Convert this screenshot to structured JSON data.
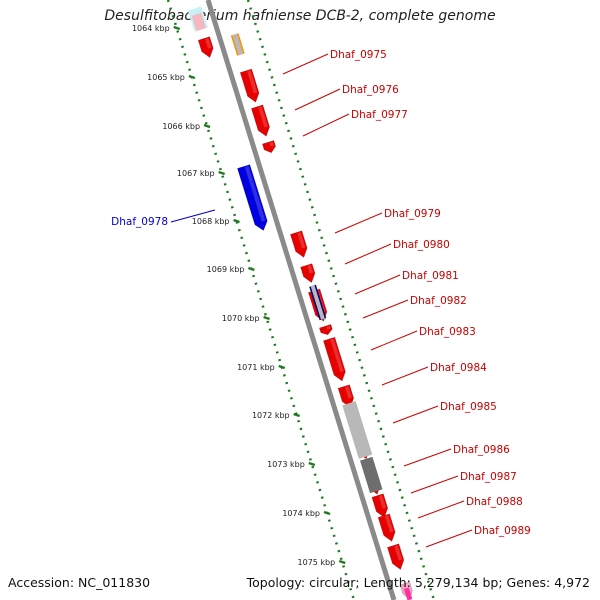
{
  "title": "Desulfitobacterium hafniense DCB-2, complete genome",
  "footer": {
    "accession": "Accession: NC_011830",
    "stats": "Topology: circular; Length: 5,279,134 bp; Genes: 4,972"
  },
  "colors": {
    "backbone": "#8a8a8a",
    "scale_dots": "#1f7a1f",
    "forward_gene": "#e60000",
    "reverse_gene": "#0000e0",
    "forward_label": "#cc0000",
    "reverse_label": "#0000cc",
    "gray_feature": "#b8b8b8",
    "dark_gray_feature": "#6e6e6e",
    "dark_navy_feature": "#000080",
    "orange_feature": "#ff9000"
  },
  "scale": {
    "unit": "kbp",
    "ticks": [
      "1064 kbp",
      "1065 kbp",
      "1066 kbp",
      "1067 kbp",
      "1068 kbp",
      "1069 kbp",
      "1070 kbp",
      "1071 kbp",
      "1072 kbp",
      "1073 kbp",
      "1074 kbp",
      "1075 kbp"
    ]
  },
  "genes": [
    {
      "name": "Dhaf_0975",
      "strand": "forward",
      "icon": "gene-arrow"
    },
    {
      "name": "Dhaf_0976",
      "strand": "forward",
      "icon": "gene-arrow"
    },
    {
      "name": "Dhaf_0977",
      "strand": "forward",
      "icon": "gene-arrow"
    },
    {
      "name": "Dhaf_0978",
      "strand": "reverse",
      "icon": "gene-arrow"
    },
    {
      "name": "Dhaf_0979",
      "strand": "forward",
      "icon": "gene-arrow"
    },
    {
      "name": "Dhaf_0980",
      "strand": "forward",
      "icon": "gene-arrow"
    },
    {
      "name": "Dhaf_0981",
      "strand": "forward",
      "icon": "gene-arrow"
    },
    {
      "name": "Dhaf_0982",
      "strand": "forward",
      "icon": "gene-arrow"
    },
    {
      "name": "Dhaf_0983",
      "strand": "forward",
      "icon": "gene-arrow"
    },
    {
      "name": "Dhaf_0984",
      "strand": "forward",
      "icon": "gene-arrow"
    },
    {
      "name": "Dhaf_0985",
      "strand": "forward",
      "icon": "gene-arrow"
    },
    {
      "name": "Dhaf_0986",
      "strand": "forward",
      "icon": "gene-arrow"
    },
    {
      "name": "Dhaf_0987",
      "strand": "forward",
      "icon": "gene-arrow"
    },
    {
      "name": "Dhaf_0988",
      "strand": "forward",
      "icon": "gene-arrow"
    },
    {
      "name": "Dhaf_0989",
      "strand": "forward",
      "icon": "gene-arrow"
    }
  ]
}
